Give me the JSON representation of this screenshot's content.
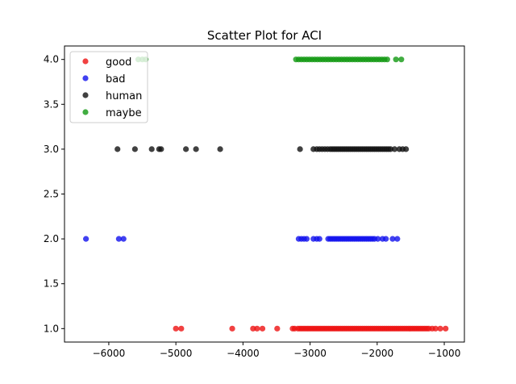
{
  "chart_data": {
    "type": "scatter",
    "title": "Scatter Plot for ACI",
    "xlabel": "",
    "ylabel": "",
    "xlim": [
      -6660,
      -700
    ],
    "ylim": [
      0.85,
      4.15
    ],
    "x_ticks": [
      -6000,
      -5000,
      -4000,
      -3000,
      -2000,
      -1000
    ],
    "x_tick_labels": [
      "−6000",
      "−5000",
      "−4000",
      "−3000",
      "−2000",
      "−1000"
    ],
    "y_ticks": [
      1.0,
      1.5,
      2.0,
      2.5,
      3.0,
      3.5,
      4.0
    ],
    "y_tick_labels": [
      "1.0",
      "1.5",
      "2.0",
      "2.5",
      "3.0",
      "3.5",
      "4.0"
    ],
    "grid": false,
    "legend_position": "top-left",
    "series": [
      {
        "name": "good",
        "color": "#ee1111",
        "y": 1,
        "x": [
          -5000,
          -4920,
          -4160,
          -3850,
          -3790,
          -3710,
          -3490,
          -3260,
          -3230,
          -3180,
          -3150,
          -3120,
          -3090,
          -3060,
          -3030,
          -3000,
          -2970,
          -2940,
          -2910,
          -2880,
          -2850,
          -2820,
          -2790,
          -2760,
          -2730,
          -2700,
          -2670,
          -2640,
          -2610,
          -2580,
          -2550,
          -2520,
          -2490,
          -2460,
          -2430,
          -2400,
          -2370,
          -2340,
          -2310,
          -2280,
          -2250,
          -2220,
          -2190,
          -2160,
          -2130,
          -2100,
          -2070,
          -2040,
          -2010,
          -1980,
          -1950,
          -1920,
          -1890,
          -1860,
          -1830,
          -1800,
          -1770,
          -1740,
          -1710,
          -1680,
          -1650,
          -1620,
          -1590,
          -1560,
          -1530,
          -1500,
          -1470,
          -1440,
          -1410,
          -1380,
          -1350,
          -1320,
          -1290,
          -1260,
          -1230,
          -1180,
          -1130,
          -1060,
          -980
        ]
      },
      {
        "name": "bad",
        "color": "#1111ee",
        "y": 2,
        "x": [
          -6340,
          -5850,
          -5780,
          -3170,
          -3130,
          -3090,
          -3050,
          -2950,
          -2900,
          -2860,
          -2730,
          -2700,
          -2670,
          -2640,
          -2610,
          -2580,
          -2550,
          -2520,
          -2490,
          -2460,
          -2430,
          -2400,
          -2370,
          -2340,
          -2310,
          -2280,
          -2250,
          -2220,
          -2190,
          -2160,
          -2130,
          -2100,
          -2070,
          -2040,
          -1990,
          -1920,
          -1870,
          -1770,
          -1700
        ]
      },
      {
        "name": "human",
        "color": "#111111",
        "y": 3,
        "x": [
          -5870,
          -5610,
          -5360,
          -5250,
          -5220,
          -4850,
          -4700,
          -4340,
          -3150,
          -2950,
          -2900,
          -2860,
          -2820,
          -2780,
          -2740,
          -2700,
          -2670,
          -2640,
          -2610,
          -2580,
          -2550,
          -2520,
          -2490,
          -2460,
          -2430,
          -2400,
          -2370,
          -2340,
          -2310,
          -2280,
          -2250,
          -2220,
          -2190,
          -2160,
          -2130,
          -2100,
          -2070,
          -2040,
          -2010,
          -1980,
          -1950,
          -1920,
          -1890,
          -1860,
          -1830,
          -1800,
          -1740,
          -1670,
          -1620,
          -1570
        ]
      },
      {
        "name": "maybe",
        "color": "#119911",
        "y": 4,
        "x": [
          -5560,
          -5500,
          -5450,
          -3210,
          -3170,
          -3130,
          -3090,
          -3050,
          -3010,
          -2970,
          -2930,
          -2890,
          -2850,
          -2810,
          -2770,
          -2730,
          -2690,
          -2650,
          -2610,
          -2570,
          -2530,
          -2490,
          -2450,
          -2410,
          -2370,
          -2330,
          -2290,
          -2250,
          -2210,
          -2170,
          -2130,
          -2090,
          -2050,
          -2010,
          -1970,
          -1930,
          -1890,
          -1850,
          -1720,
          -1640
        ]
      }
    ]
  }
}
